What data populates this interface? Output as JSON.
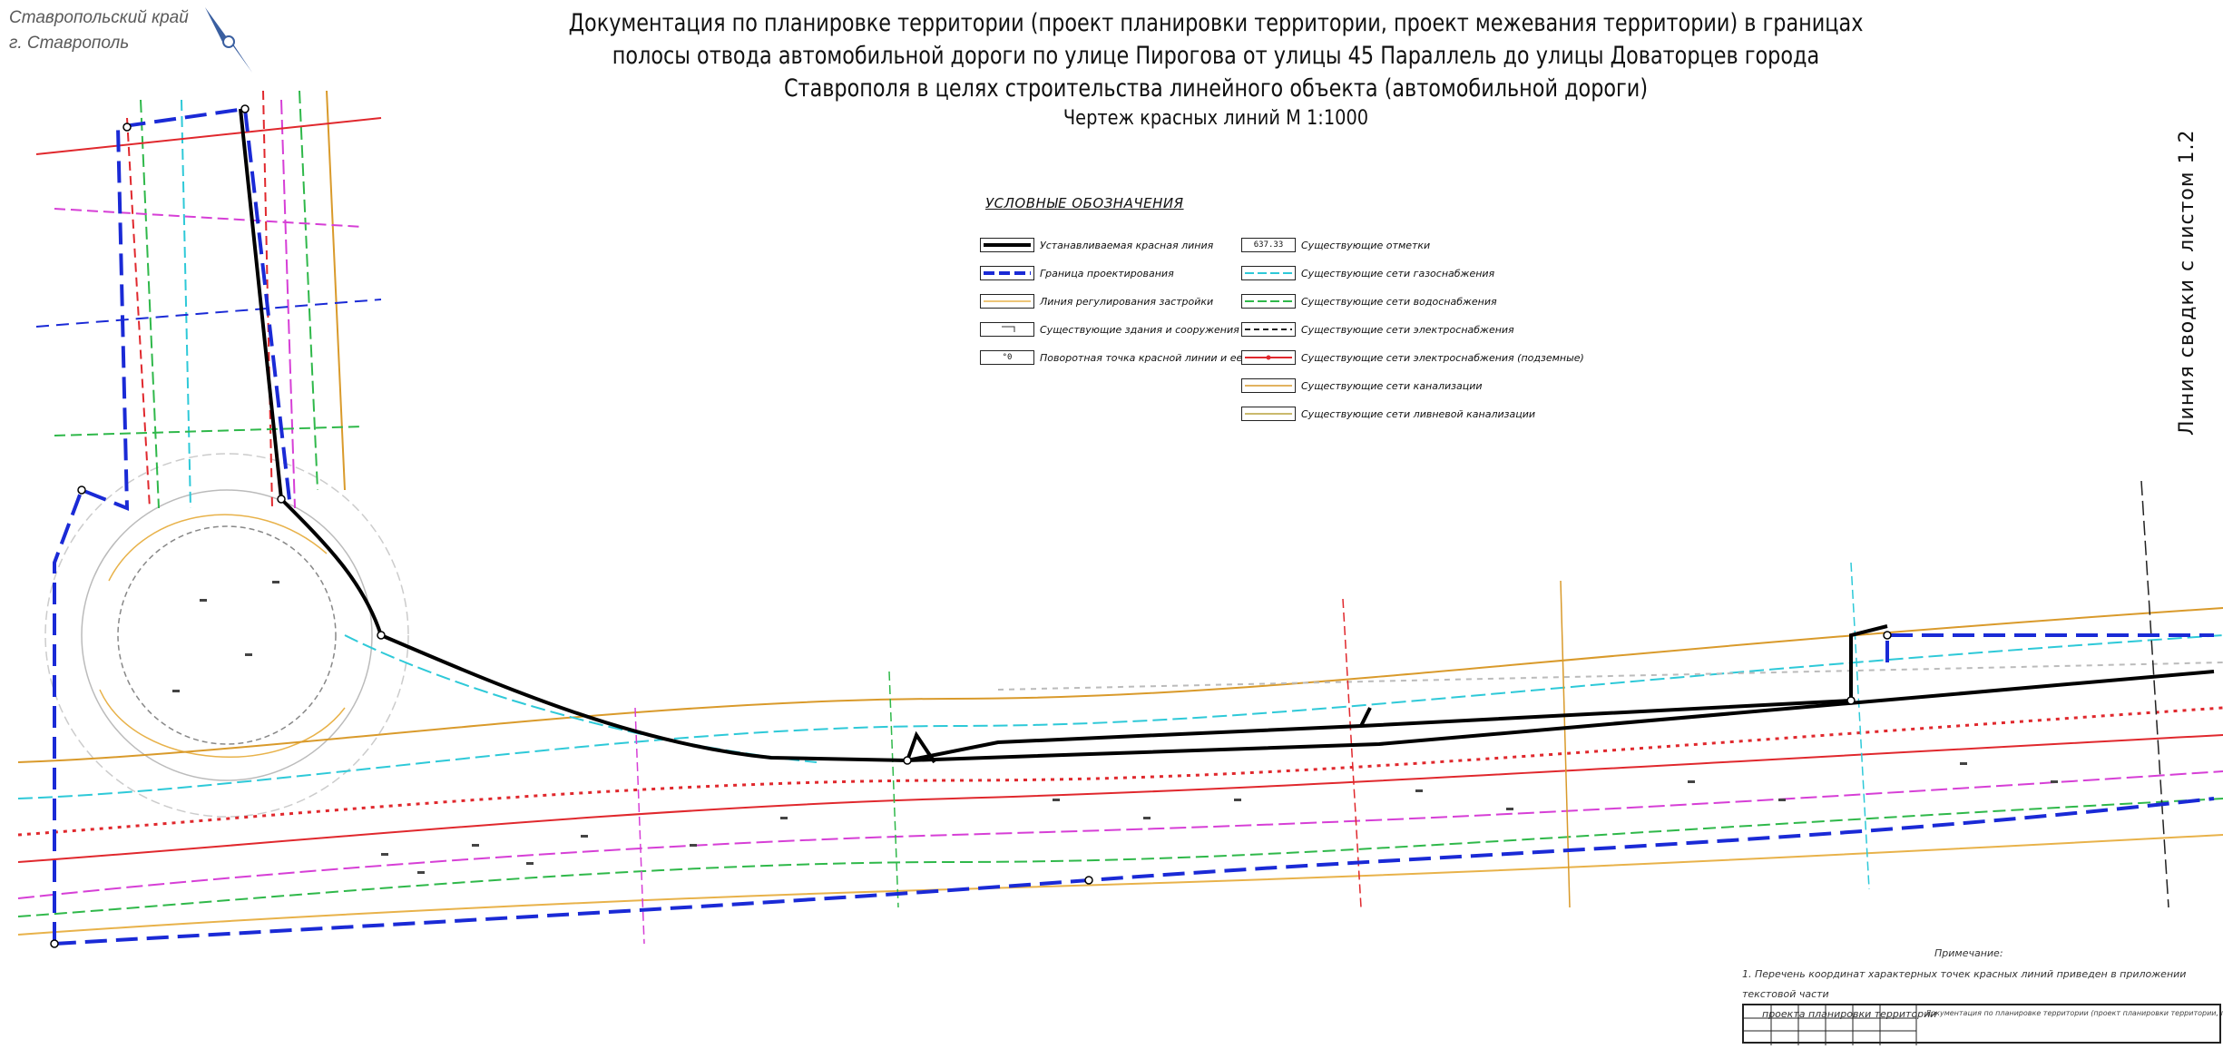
{
  "region": {
    "line1": "Ставропольский край",
    "line2": "г. Ставрополь"
  },
  "title": {
    "line1": "Документация по планировке территории (проект планировки территории, проект межевания территории) в границах",
    "line2": "полосы отвода автомобильной дороги по улице Пирогова от улицы 45 Параллель до улицы Доваторцев города",
    "line3": "Ставрополя в целях строительства линейного объекта (автомобильной дороги)",
    "subtitle": "Чертеж красных линий М 1:1000"
  },
  "legend": {
    "title": "УСЛОВНЫЕ ОБОЗНАЧЕНИЯ",
    "left": [
      {
        "label": "Устанавливаемая красная линия",
        "style": "thick-black",
        "color": "#000000"
      },
      {
        "label": "Граница проектирования",
        "style": "dash-blue",
        "color": "#1a2ad6"
      },
      {
        "label": "Линия регулирования застройки",
        "style": "thin-orange",
        "color": "#e8b24a"
      },
      {
        "label": "Существующие здания и сооружения",
        "style": "building",
        "color": "#333333"
      },
      {
        "label": "Поворотная точка красной линии и ее номер",
        "style": "point",
        "color": "#333333",
        "swatch_text": "°0"
      }
    ],
    "right": [
      {
        "label": "Существующие отметки",
        "style": "mark",
        "color": "#333333",
        "swatch_text": "637.33"
      },
      {
        "label": "Существующие сети газоснабжения",
        "style": "cyan-dash",
        "color": "#2ec9d8"
      },
      {
        "label": "Существующие сети водоснабжения",
        "style": "green-dash",
        "color": "#2fb84a"
      },
      {
        "label": "Существующие сети электроснабжения",
        "style": "black-dot",
        "color": "#222222"
      },
      {
        "label": "Существующие сети электроснабжения (подземные)",
        "style": "red-dot",
        "color": "#e0282d"
      },
      {
        "label": "Существующие сети канализации",
        "style": "orange-line",
        "color": "#d99a2b"
      },
      {
        "label": "Существующие сети ливневой канализации",
        "style": "olive-line",
        "color": "#b9a23c"
      }
    ]
  },
  "side_label": "Линия сводки с листом 1.2",
  "notes": {
    "heading": "Примечание:",
    "line1": "1.    Перечень координат характерных точек красных линий приведен в приложении текстовой части",
    "line2": "проекта планировки территории"
  },
  "stamp_text": "Документация по планировке территории (проект планировки территории, проект межевания...",
  "colors": {
    "red_line": "#000000",
    "boundary": "#1a2ad6",
    "gas": "#2ec9d8",
    "water": "#2fb84a",
    "power_underground": "#e0282d",
    "sewer": "#d99a2b",
    "magenta": "#d63fd6"
  }
}
